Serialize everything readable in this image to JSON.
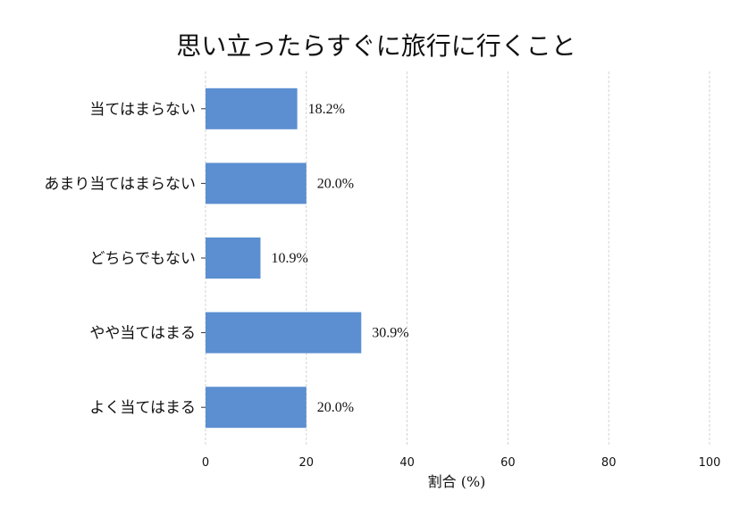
{
  "chart_data": {
    "type": "bar",
    "orientation": "horizontal",
    "title": "思い立ったらすぐに旅行に行くこと",
    "xlabel": "割合 (%)",
    "ylabel": "",
    "categories": [
      "当てはまらない",
      "あまり当てはまらない",
      "どちらでもない",
      "やや当てはまる",
      "よく当てはまる"
    ],
    "values": [
      18.2,
      20.0,
      10.9,
      30.9,
      20.0
    ],
    "value_labels": [
      "18.2%",
      "20.0%",
      "10.9%",
      "30.9%",
      "20.0%"
    ],
    "xlim": [
      0,
      100
    ],
    "xticks": [
      0,
      20,
      40,
      60,
      80,
      100
    ],
    "xtick_labels": [
      "0",
      "20",
      "40",
      "60",
      "80",
      "100"
    ],
    "grid": "vertical-dashed",
    "legend": "none",
    "bar_color": "#5b8fd1"
  }
}
